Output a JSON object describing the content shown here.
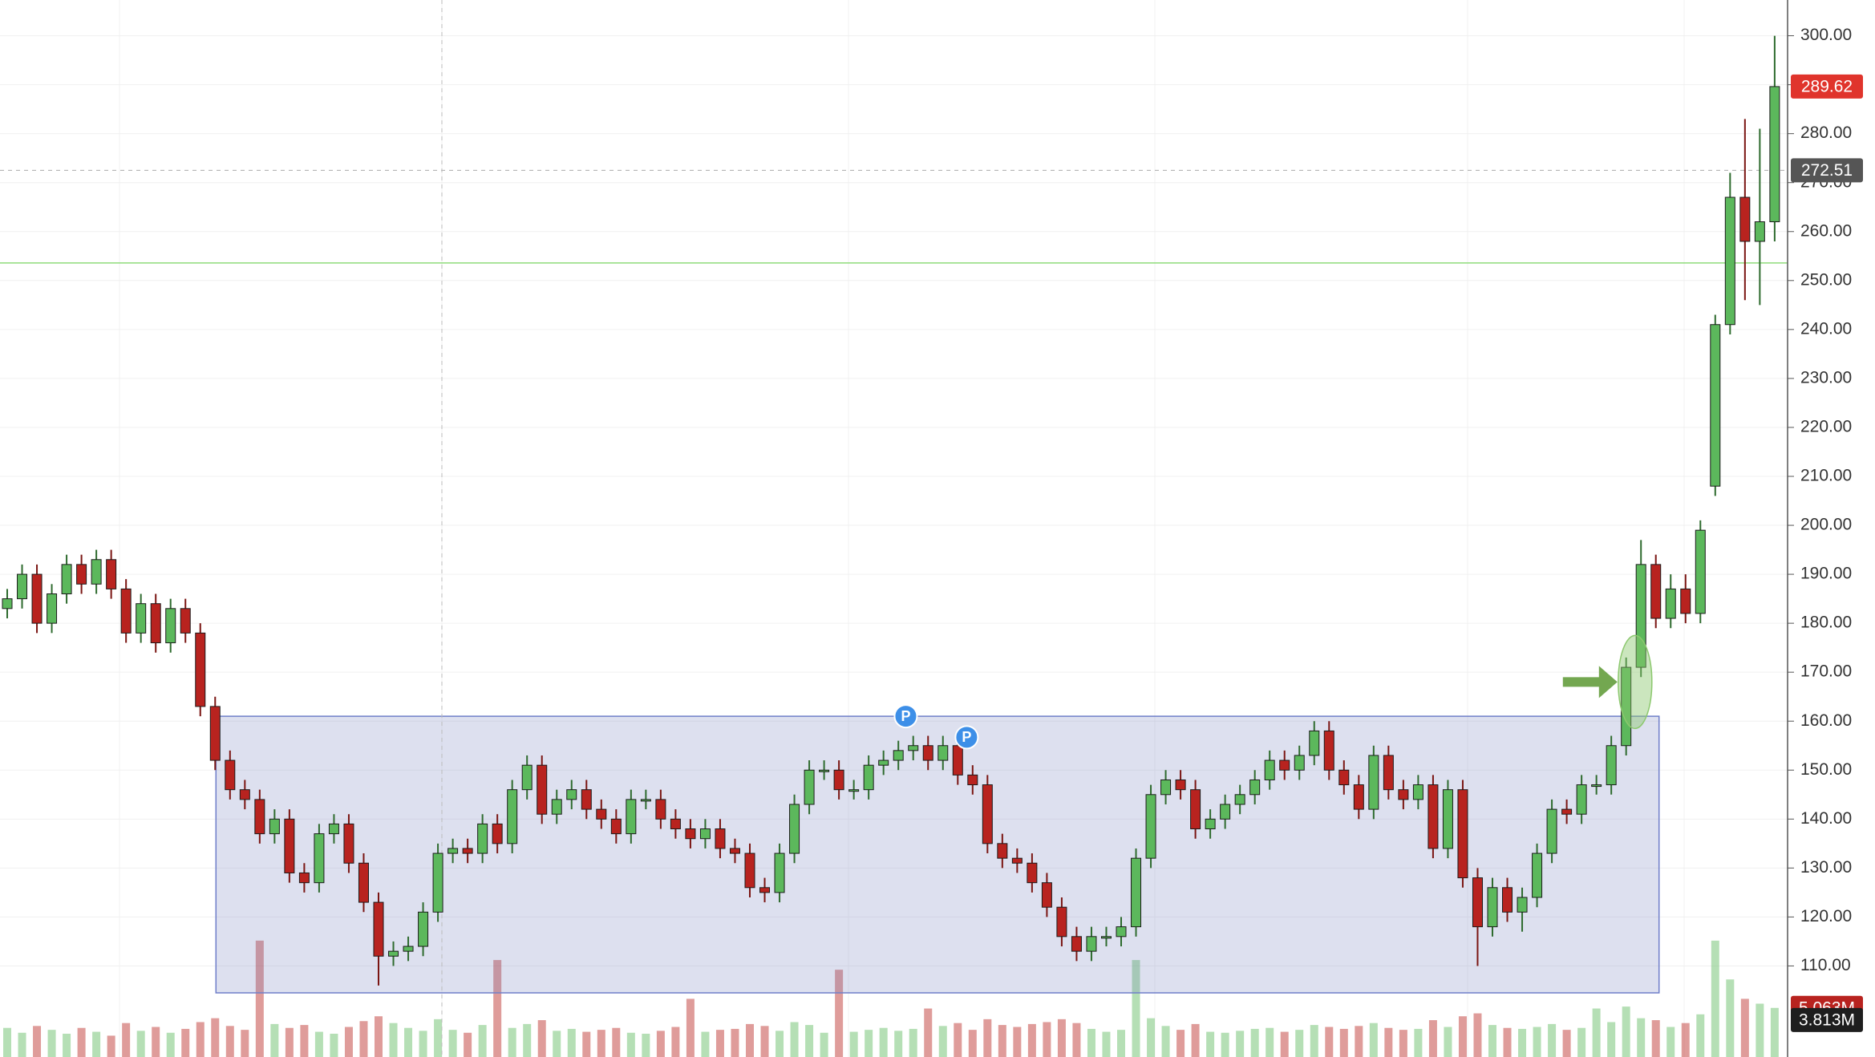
{
  "chart_data": {
    "type": "candlestick",
    "open": [
      183,
      185,
      190,
      180,
      186,
      192,
      188,
      193,
      187,
      178,
      184,
      176,
      183,
      178,
      163,
      152,
      146,
      144,
      137,
      140,
      129,
      127,
      137,
      139,
      131,
      123,
      112,
      113,
      114,
      121,
      133,
      134,
      133,
      139,
      135,
      146,
      151,
      141,
      144,
      146,
      142,
      140,
      137,
      144,
      144,
      140,
      138,
      136,
      138,
      134,
      133,
      126,
      125,
      133,
      143,
      150,
      150,
      146,
      146,
      151,
      152,
      154,
      155,
      152,
      155,
      149,
      147,
      135,
      132,
      131,
      127,
      122,
      116,
      113,
      116,
      116,
      118,
      132,
      145,
      148,
      146,
      138,
      140,
      143,
      145,
      148,
      152,
      150,
      153,
      158,
      150,
      147,
      142,
      153,
      146,
      144,
      147,
      134,
      146,
      128,
      118,
      126,
      121,
      124,
      133,
      142,
      141,
      147,
      147,
      155,
      171,
      192,
      181,
      187,
      182,
      208,
      241,
      267,
      258,
      262
    ],
    "high": [
      187,
      192,
      192,
      188,
      194,
      194,
      195,
      195,
      189,
      186,
      186,
      185,
      185,
      180,
      165,
      154,
      148,
      146,
      142,
      142,
      131,
      139,
      141,
      141,
      133,
      125,
      115,
      116,
      123,
      135,
      136,
      136,
      141,
      141,
      148,
      153,
      153,
      146,
      148,
      148,
      144,
      142,
      146,
      146,
      146,
      142,
      140,
      140,
      140,
      136,
      135,
      128,
      135,
      145,
      152,
      152,
      152,
      148,
      153,
      154,
      156,
      157,
      157,
      157,
      157,
      151,
      149,
      137,
      134,
      133,
      129,
      124,
      118,
      118,
      118,
      120,
      134,
      147,
      150,
      150,
      148,
      142,
      145,
      147,
      150,
      154,
      154,
      155,
      160,
      160,
      152,
      149,
      155,
      155,
      148,
      149,
      149,
      148,
      148,
      130,
      128,
      128,
      126,
      135,
      144,
      144,
      149,
      149,
      157,
      173,
      197,
      194,
      190,
      190,
      201,
      243,
      272,
      283,
      281,
      300
    ],
    "low": [
      181,
      183,
      178,
      178,
      184,
      186,
      186,
      185,
      176,
      176,
      174,
      174,
      176,
      161,
      150,
      144,
      142,
      135,
      135,
      127,
      125,
      125,
      135,
      129,
      121,
      106,
      110,
      111,
      112,
      119,
      131,
      131,
      131,
      133,
      133,
      144,
      139,
      139,
      142,
      140,
      138,
      135,
      135,
      142,
      138,
      136,
      134,
      134,
      132,
      131,
      124,
      123,
      123,
      131,
      141,
      148,
      144,
      144,
      144,
      149,
      150,
      152,
      150,
      150,
      147,
      145,
      133,
      130,
      129,
      125,
      120,
      114,
      111,
      111,
      114,
      114,
      116,
      130,
      143,
      144,
      136,
      136,
      138,
      141,
      143,
      146,
      148,
      148,
      151,
      148,
      145,
      140,
      140,
      144,
      142,
      142,
      132,
      132,
      126,
      110,
      116,
      119,
      117,
      122,
      131,
      139,
      139,
      145,
      145,
      153,
      169,
      179,
      179,
      180,
      180,
      206,
      239,
      246,
      245,
      258
    ],
    "close": [
      185,
      190,
      180,
      186,
      192,
      188,
      193,
      187,
      178,
      184,
      176,
      183,
      178,
      163,
      152,
      146,
      144,
      137,
      140,
      129,
      127,
      137,
      139,
      131,
      123,
      112,
      113,
      114,
      121,
      133,
      134,
      133,
      139,
      135,
      146,
      151,
      141,
      144,
      146,
      142,
      140,
      137,
      144,
      144,
      140,
      138,
      136,
      138,
      134,
      133,
      126,
      125,
      133,
      143,
      150,
      150,
      146,
      146,
      151,
      152,
      154,
      155,
      152,
      155,
      149,
      147,
      135,
      132,
      131,
      127,
      122,
      116,
      113,
      116,
      116,
      118,
      132,
      145,
      148,
      146,
      138,
      140,
      143,
      145,
      148,
      152,
      150,
      153,
      158,
      150,
      147,
      142,
      153,
      146,
      144,
      147,
      134,
      146,
      128,
      118,
      126,
      121,
      124,
      133,
      142,
      141,
      147,
      147,
      155,
      171,
      192,
      181,
      187,
      182,
      199,
      241,
      267,
      258,
      262,
      289.62
    ],
    "volume": [
      3,
      2.5,
      3.2,
      2.8,
      2.4,
      3,
      2.6,
      2.2,
      3.5,
      2.7,
      3.1,
      2.5,
      2.9,
      3.6,
      4,
      3.2,
      2.8,
      12,
      3.4,
      3,
      3.3,
      2.6,
      2.4,
      3.1,
      3.7,
      4.2,
      3.5,
      3,
      2.7,
      3.9,
      2.8,
      2.5,
      3.3,
      10,
      3,
      3.4,
      3.8,
      2.7,
      2.9,
      2.6,
      2.8,
      3,
      2.5,
      2.4,
      2.7,
      3.1,
      6,
      2.6,
      2.8,
      2.9,
      3.4,
      3.2,
      2.7,
      3.6,
      3.3,
      2.5,
      9,
      2.6,
      2.8,
      3,
      2.7,
      2.9,
      5,
      3.2,
      3.5,
      2.8,
      3.9,
      3.3,
      3.1,
      3.4,
      3.6,
      3.9,
      3.5,
      2.9,
      2.6,
      2.8,
      10,
      4,
      3.2,
      2.8,
      3.4,
      2.6,
      2.5,
      2.7,
      2.9,
      3,
      2.6,
      2.8,
      3.3,
      3.1,
      2.9,
      3.2,
      3.5,
      3,
      2.8,
      2.9,
      3.8,
      3.1,
      4.2,
      4.5,
      3.3,
      3,
      2.9,
      3.1,
      3.4,
      2.8,
      3,
      5,
      3.6,
      5.2,
      4,
      3.8,
      3.1,
      3.5,
      4.4,
      12,
      8,
      6,
      5.5,
      5.063
    ],
    "up_color": "#5cb85c",
    "down_color": "#b8231f",
    "ylim": [
      91.4,
      307.3
    ],
    "volume_ylim": [
      0,
      109
    ],
    "yticks": [
      {
        "value": 110,
        "label": "110.00"
      },
      {
        "value": 120,
        "label": "120.00"
      },
      {
        "value": 130,
        "label": "130.00"
      },
      {
        "value": 140,
        "label": "140.00"
      },
      {
        "value": 150,
        "label": "150.00"
      },
      {
        "value": 160,
        "label": "160.00"
      },
      {
        "value": 170,
        "label": "170.00"
      },
      {
        "value": 180,
        "label": "180.00"
      },
      {
        "value": 190,
        "label": "190.00"
      },
      {
        "value": 200,
        "label": "200.00"
      },
      {
        "value": 210,
        "label": "210.00"
      },
      {
        "value": 220,
        "label": "220.00"
      },
      {
        "value": 230,
        "label": "230.00"
      },
      {
        "value": 240,
        "label": "240.00"
      },
      {
        "value": 250,
        "label": "250.00"
      },
      {
        "value": 260,
        "label": "260.00"
      },
      {
        "value": 270,
        "label": "270.00"
      },
      {
        "value": 280,
        "label": "280.00"
      },
      {
        "value": 290,
        "label": "290.00"
      },
      {
        "value": 300,
        "label": "300.00"
      }
    ],
    "grid": true,
    "price_tags": [
      {
        "value": 289.62,
        "label": "289.62",
        "color": "#e0342c"
      },
      {
        "value": 272.51,
        "label": "272.51",
        "color": "#555555"
      }
    ],
    "volume_tags": [
      {
        "value": 5.063,
        "label": "5.063M",
        "color": "#b8231f"
      },
      {
        "value": 3.813,
        "label": "3.813M",
        "color": "#1e1e1e"
      }
    ],
    "range_box": {
      "top": 161,
      "bottom": 104.5
    },
    "support_line": 253.6,
    "markers": [
      {
        "label": "P",
        "value": 161
      },
      {
        "label": "P",
        "value": 156.7
      }
    ]
  }
}
